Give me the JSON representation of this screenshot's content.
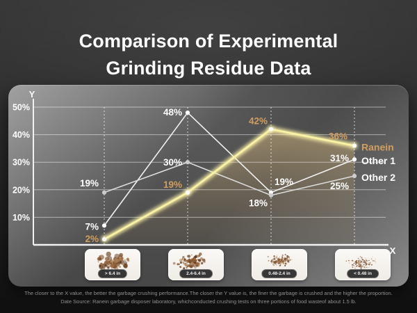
{
  "title": {
    "line1": "Comparison of Experimental",
    "line2": "Grinding Residue Data"
  },
  "chart_data": {
    "type": "line",
    "title": "Comparison of Experimental Grinding Residue Data",
    "x_axis_letter": "X",
    "y_axis_letter": "Y",
    "categories": [
      "> 6.4 in",
      "2.4-6.4 in",
      "0.48-2.4 in",
      "< 0.48 in"
    ],
    "y_tick_values": [
      50,
      40,
      30,
      20,
      10
    ],
    "y_tick_labels": [
      "50%",
      "40%",
      "30%",
      "20%",
      "10%"
    ],
    "ylim": [
      0,
      52
    ],
    "grid": true,
    "legend_position": "right-of-last-point",
    "series": [
      {
        "name": "Ranein",
        "values": [
          2,
          19,
          42,
          36
        ],
        "labels": [
          "2%",
          "19%",
          "42%",
          "36%"
        ],
        "line_color": "#f9f2a4",
        "label_color": "#d19e5f",
        "dot_color": "#ffffff",
        "highlight": true
      },
      {
        "name": "Other 1",
        "values": [
          7,
          48,
          19,
          31
        ],
        "labels": [
          "7%",
          "48%",
          "19%",
          "31%"
        ],
        "line_color": "#f2f2f2",
        "label_color": "#ffffff",
        "dot_color": "#ffffff",
        "highlight": false
      },
      {
        "name": "Other 2",
        "values": [
          19,
          30,
          18,
          25
        ],
        "labels": [
          "19%",
          "30%",
          "18%",
          "25%"
        ],
        "line_color": "#dcdcdc",
        "label_color": "#ffffff",
        "dot_color": "#cccccc",
        "highlight": false
      }
    ],
    "area_fill_under": "Ranein"
  },
  "colors": {
    "accent_gold": "#d19e5f",
    "ranein_line": "#f9f2a4",
    "axis": "#f2f2f2",
    "area_top": "rgba(214,184,128,0.55)",
    "area_mid": "rgba(160,134,92,0.30)",
    "area_bottom": "rgba(120,100,70,0.12)"
  },
  "footer": {
    "line1": "The closer to the X value, the better the garbage crushing performance.The closer the Y value is, the finer the garbage is crushed and the higher the proportion.",
    "line2": "Date Source: Ranein garbage disposer laboratory, whichconducted crushing tests on three portions of food wasteof about 1.5 lb."
  }
}
